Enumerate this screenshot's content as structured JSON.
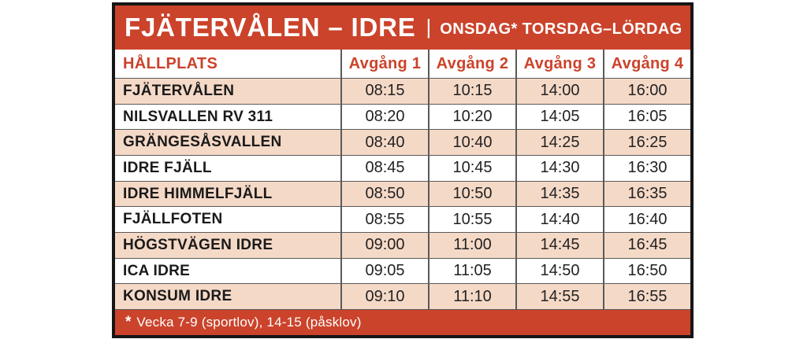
{
  "colors": {
    "red": "#cb432b",
    "peach": "#f5d9c7",
    "grid": "#5a5a5a",
    "border": "#161616",
    "text": "#1a1a1a"
  },
  "header": {
    "title": "FJÄTERVÅLEN – IDRE",
    "separator": "|",
    "days": "ONSDAG* TORSDAG–LÖRDAG"
  },
  "table": {
    "columns": [
      "HÅLLPLATS",
      "Avgång 1",
      "Avgång 2",
      "Avgång 3",
      "Avgång 4"
    ],
    "rows": [
      {
        "stop": "FJÄTERVÅLEN",
        "times": [
          "08:15",
          "10:15",
          "14:00",
          "16:00"
        ]
      },
      {
        "stop": "NILSVALLEN RV 311",
        "times": [
          "08:20",
          "10:20",
          "14:05",
          "16:05"
        ]
      },
      {
        "stop": "GRÄNGESÅSVALLEN",
        "times": [
          "08:40",
          "10:40",
          "14:25",
          "16:25"
        ]
      },
      {
        "stop": "IDRE FJÄLL",
        "times": [
          "08:45",
          "10:45",
          "14:30",
          "16:30"
        ]
      },
      {
        "stop": "IDRE HIMMELFJÄLL",
        "times": [
          "08:50",
          "10:50",
          "14:35",
          "16:35"
        ]
      },
      {
        "stop": "FJÄLLFOTEN",
        "times": [
          "08:55",
          "10:55",
          "14:40",
          "16:40"
        ]
      },
      {
        "stop": "HÖGSTVÄGEN IDRE",
        "times": [
          "09:00",
          "11:00",
          "14:45",
          "16:45"
        ]
      },
      {
        "stop": "ICA IDRE",
        "times": [
          "09:05",
          "11:05",
          "14:50",
          "16:50"
        ]
      },
      {
        "stop": "KONSUM IDRE",
        "times": [
          "09:10",
          "11:10",
          "14:55",
          "16:55"
        ]
      }
    ]
  },
  "footer": {
    "asterisk": "*",
    "note": "Vecka 7-9 (sportlov), 14-15 (påsklov)"
  }
}
